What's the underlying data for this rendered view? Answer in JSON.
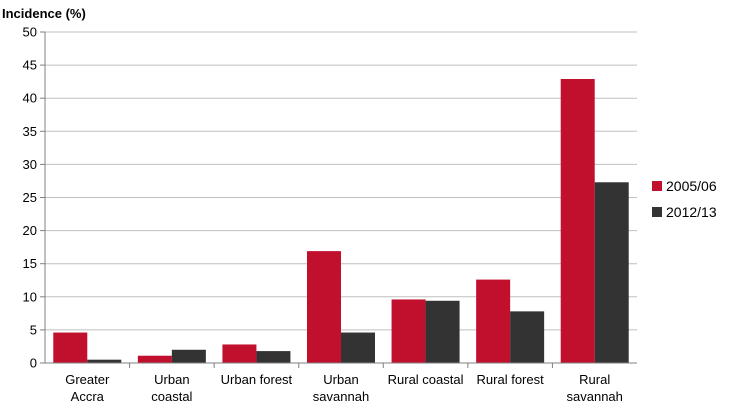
{
  "chart_data": {
    "type": "bar",
    "ylabel": "Incidence (%)",
    "xlabel": "",
    "ylim": [
      0,
      50
    ],
    "ytick_step": 5,
    "grid": true,
    "legend_position": "right",
    "categories": [
      [
        "Greater",
        "Accra"
      ],
      [
        "Urban",
        "coastal"
      ],
      [
        "Urban forest"
      ],
      [
        "Urban",
        "savannah"
      ],
      [
        "Rural coastal"
      ],
      [
        "Rural forest"
      ],
      [
        "Rural",
        "savannah"
      ]
    ],
    "series": [
      {
        "name": "2005/06",
        "color": "#c0102e",
        "values": [
          4.6,
          1.1,
          2.8,
          16.9,
          9.6,
          12.6,
          42.9
        ]
      },
      {
        "name": "2012/13",
        "color": "#333333",
        "values": [
          0.5,
          2.0,
          1.8,
          4.6,
          9.4,
          7.8,
          27.3
        ]
      }
    ]
  }
}
